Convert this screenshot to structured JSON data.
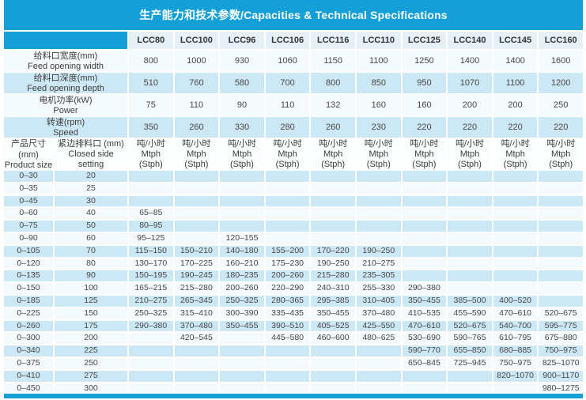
{
  "title": "生产能力和技术参数/Capacities & Technical Specifications",
  "colors": {
    "accent_blue": "#149fd6",
    "header_bg": "#e7f0f7",
    "row_light_blue": "#cde8f5",
    "row_white": "#f4fafd",
    "text": "#3d3d3d"
  },
  "models": [
    "LCC80",
    "LCC100",
    "LCC96",
    "LCC106",
    "LCC116",
    "LCC110",
    "LCC125",
    "LCC140",
    "LCC145",
    "LCC160"
  ],
  "specs": {
    "rows": [
      {
        "label_zh": "给料口宽度(mm)",
        "label_en": "Feed opening width",
        "values": [
          "800",
          "1000",
          "930",
          "1060",
          "1150",
          "1100",
          "1250",
          "1400",
          "1400",
          "1600"
        ]
      },
      {
        "label_zh": "给料口深度(mm)",
        "label_en": "Feed opening depth",
        "values": [
          "510",
          "760",
          "580",
          "700",
          "800",
          "850",
          "950",
          "1070",
          "1100",
          "1200"
        ]
      },
      {
        "label_zh": "电机功率(kW)",
        "label_en": "Power",
        "values": [
          "75",
          "110",
          "90",
          "110",
          "132",
          "160",
          "160",
          "200",
          "200",
          "250"
        ]
      },
      {
        "label_zh": "转速(rpm)",
        "label_en": "Speed",
        "values": [
          "350",
          "260",
          "330",
          "280",
          "260",
          "230",
          "220",
          "220",
          "220",
          "220"
        ]
      }
    ]
  },
  "capacity": {
    "product_size_header_zh": "产品尺寸(mm)",
    "product_size_header_en": "Product size",
    "css_header_zh": "紧边排料口 (mm)",
    "css_header_en": "Closed side setting",
    "unit_zh": "吨/小时",
    "unit_en": "Mtph (Stph)",
    "rows": [
      {
        "size": "0–30",
        "css": "20",
        "values": [
          "",
          "",
          "",
          "",
          "",
          "",
          "",
          "",
          "",
          ""
        ]
      },
      {
        "size": "0–35",
        "css": "25",
        "values": [
          "",
          "",
          "",
          "",
          "",
          "",
          "",
          "",
          "",
          ""
        ]
      },
      {
        "size": "0–45",
        "css": "30",
        "values": [
          "",
          "",
          "",
          "",
          "",
          "",
          "",
          "",
          "",
          ""
        ]
      },
      {
        "size": "0–60",
        "css": "40",
        "values": [
          "65–85",
          "",
          "",
          "",
          "",
          "",
          "",
          "",
          "",
          ""
        ]
      },
      {
        "size": "0–75",
        "css": "50",
        "values": [
          "80–95",
          "",
          "",
          "",
          "",
          "",
          "",
          "",
          "",
          ""
        ]
      },
      {
        "size": "0–90",
        "css": "60",
        "values": [
          "95–125",
          "",
          "120–155",
          "",
          "",
          "",
          "",
          "",
          "",
          ""
        ]
      },
      {
        "size": "0–105",
        "css": "70",
        "values": [
          "115–150",
          "150–210",
          "140–180",
          "155–200",
          "170–220",
          "190–250",
          "",
          "",
          "",
          ""
        ]
      },
      {
        "size": "0–120",
        "css": "80",
        "values": [
          "130–170",
          "170–225",
          "160–210",
          "175–230",
          "190–250",
          "210–275",
          "",
          "",
          "",
          ""
        ]
      },
      {
        "size": "0–135",
        "css": "90",
        "values": [
          "150–195",
          "190–245",
          "180–235",
          "200–260",
          "215–280",
          "235–305",
          "",
          "",
          "",
          ""
        ]
      },
      {
        "size": "0–150",
        "css": "100",
        "values": [
          "165–215",
          "215–280",
          "200–260",
          "220–290",
          "240–310",
          "255–330",
          "290–380",
          "",
          "",
          ""
        ]
      },
      {
        "size": "0–185",
        "css": "125",
        "values": [
          "210–275",
          "265–345",
          "250–325",
          "280–365",
          "295–385",
          "310–405",
          "350–455",
          "385–500",
          "400–520",
          ""
        ]
      },
      {
        "size": "0–225",
        "css": "150",
        "values": [
          "250–325",
          "315–410",
          "300–390",
          "335–435",
          "350–455",
          "370–480",
          "410–535",
          "455–590",
          "470–610",
          "520–675"
        ]
      },
      {
        "size": "0–260",
        "css": "175",
        "values": [
          "290–380",
          "370–480",
          "350–455",
          "390–510",
          "405–525",
          "425–550",
          "470–610",
          "520–675",
          "540–700",
          "595–775"
        ]
      },
      {
        "size": "0–300",
        "css": "200",
        "values": [
          "",
          "420–545",
          "",
          "445–580",
          "460–600",
          "480–625",
          "530–690",
          "590–765",
          "610–795",
          "675–880"
        ]
      },
      {
        "size": "0–340",
        "css": "225",
        "values": [
          "",
          "",
          "",
          "",
          "",
          "",
          "590–770",
          "655–850",
          "680–885",
          "750–975"
        ]
      },
      {
        "size": "0–375",
        "css": "250",
        "values": [
          "",
          "",
          "",
          "",
          "",
          "",
          "650–845",
          "725–945",
          "750–975",
          "825–1070"
        ]
      },
      {
        "size": "0–410",
        "css": "275",
        "values": [
          "",
          "",
          "",
          "",
          "",
          "",
          "",
          "",
          "820–1070",
          "900–1170"
        ]
      },
      {
        "size": "0–450",
        "css": "300",
        "values": [
          "",
          "",
          "",
          "",
          "",
          "",
          "",
          "",
          "",
          "980–1275"
        ]
      }
    ]
  }
}
